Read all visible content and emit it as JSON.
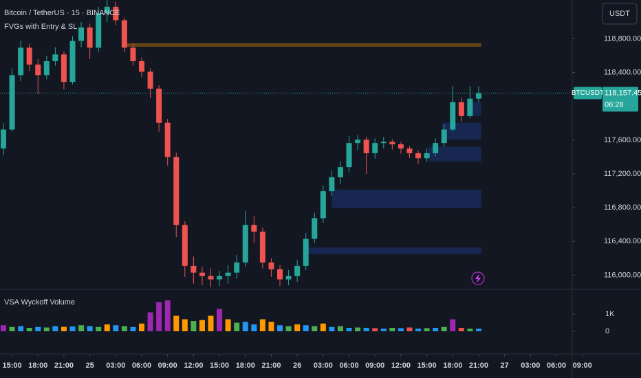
{
  "header": {
    "symbol_title": "Bitcoin / TetherUS · 15 · BINANCE",
    "indicator": "FVGs with Entry & SL",
    "currency_button": "USDT"
  },
  "chart_data": [
    {
      "type": "candlestick",
      "x": [
        -1,
        0,
        1,
        2,
        3,
        4,
        5,
        6,
        7,
        8,
        9,
        10,
        11,
        12,
        13,
        14,
        15,
        16,
        17,
        18,
        19,
        20,
        21,
        22,
        23,
        24,
        25,
        26,
        27,
        28,
        29,
        30,
        31,
        32,
        33,
        34,
        35,
        36,
        37,
        38,
        39,
        40,
        41,
        42,
        43,
        44,
        45,
        46,
        47,
        48,
        49,
        50,
        51,
        52,
        53,
        54
      ],
      "open": [
        117500,
        117725,
        118370,
        118695,
        118495,
        118370,
        118535,
        118615,
        118290,
        118775,
        118935,
        118695,
        119100,
        119180,
        119020,
        118695,
        118535,
        118410,
        118210,
        117805,
        117400,
        116595,
        116110,
        116030,
        115990,
        115950,
        115990,
        116030,
        116150,
        116595,
        116515,
        116150,
        116070,
        115950,
        115990,
        116110,
        116430,
        116675,
        116995,
        117160,
        117280,
        117565,
        117605,
        117445,
        117565,
        117580,
        117550,
        117500,
        117445,
        117385,
        117445,
        117565,
        117725,
        118050,
        117885,
        118090
      ],
      "high": [
        117800,
        118450,
        118780,
        118740,
        118560,
        118600,
        118700,
        118650,
        118830,
        119000,
        118980,
        119180,
        119260,
        119240,
        119050,
        118740,
        118580,
        118450,
        118250,
        117850,
        117450,
        116640,
        116220,
        116100,
        116080,
        116050,
        116120,
        116240,
        116760,
        116700,
        116560,
        116200,
        116120,
        116060,
        116180,
        116500,
        116740,
        117060,
        117240,
        117350,
        117650,
        117660,
        117640,
        117620,
        117640,
        117610,
        117580,
        117530,
        117480,
        117500,
        117620,
        117790,
        118240,
        118100,
        118240,
        118240
      ],
      "low": [
        117420,
        117700,
        118300,
        118420,
        118150,
        118320,
        118480,
        118200,
        118260,
        118700,
        118560,
        118650,
        119000,
        118960,
        118640,
        118480,
        118350,
        118100,
        117700,
        117300,
        116450,
        115980,
        115900,
        115880,
        115860,
        115870,
        115900,
        115960,
        116100,
        116380,
        116080,
        115980,
        115870,
        115880,
        115920,
        116060,
        116380,
        116620,
        116940,
        117080,
        117220,
        117480,
        117200,
        117380,
        117500,
        117490,
        117440,
        117390,
        117320,
        117340,
        117410,
        117520,
        117700,
        117820,
        117860,
        118050
      ],
      "close": [
        117725,
        118370,
        118695,
        118495,
        118370,
        118535,
        118615,
        118290,
        118775,
        118935,
        118695,
        119100,
        119180,
        119020,
        118695,
        118535,
        118410,
        118210,
        117805,
        117400,
        116595,
        116110,
        116030,
        115990,
        115950,
        115990,
        116030,
        116150,
        116595,
        116515,
        116150,
        116070,
        115950,
        115990,
        116110,
        116430,
        116675,
        116995,
        117160,
        117280,
        117565,
        117605,
        117445,
        117565,
        117580,
        117550,
        117500,
        117445,
        117385,
        117445,
        117565,
        117725,
        118050,
        117885,
        118090,
        118157.45
      ],
      "up_color": "#26a69a",
      "down_color": "#ef5350",
      "xlim": [
        -1,
        66.5
      ],
      "ylim": [
        115840,
        119260
      ],
      "xticks": [
        {
          "value": 0,
          "label": "15:00"
        },
        {
          "value": 3,
          "label": "18:00"
        },
        {
          "value": 6,
          "label": "21:00"
        },
        {
          "value": 9,
          "label": "25"
        },
        {
          "value": 12,
          "label": "03:00"
        },
        {
          "value": 15,
          "label": "06:00"
        },
        {
          "value": 18,
          "label": "09:00"
        },
        {
          "value": 21,
          "label": "12:00"
        },
        {
          "value": 24,
          "label": "15:00"
        },
        {
          "value": 27,
          "label": "18:00"
        },
        {
          "value": 30,
          "label": "21:00"
        },
        {
          "value": 33,
          "label": "26"
        },
        {
          "value": 36,
          "label": "03:00"
        },
        {
          "value": 39,
          "label": "06:00"
        },
        {
          "value": 42,
          "label": "09:00"
        },
        {
          "value": 45,
          "label": "12:00"
        },
        {
          "value": 48,
          "label": "15:00"
        },
        {
          "value": 51,
          "label": "18:00"
        },
        {
          "value": 54,
          "label": "21:00"
        },
        {
          "value": 57,
          "label": "27"
        },
        {
          "value": 60,
          "label": "03:00"
        },
        {
          "value": 63,
          "label": "06:00"
        },
        {
          "value": 66,
          "label": "09:00"
        }
      ],
      "yticks": [
        {
          "value": 118800,
          "label": "118,800.00"
        },
        {
          "value": 118400,
          "label": "118,400.00"
        },
        {
          "value": 117600,
          "label": "117,600.00"
        },
        {
          "value": 117200,
          "label": "117,200.00"
        },
        {
          "value": 116800,
          "label": "116,800.00"
        },
        {
          "value": 116400,
          "label": "116,400.00"
        },
        {
          "value": 116000,
          "label": "116,000.00"
        }
      ],
      "last_price": {
        "value": 118157.45,
        "label": "118,157.45"
      },
      "symbol_label": "BTCUSDT",
      "countdown": "06:28",
      "zones": [
        {
          "x0": 37,
          "x1": 54.3,
          "low": 116796,
          "high": 117014
        },
        {
          "x0": 34.2,
          "x1": 54.3,
          "low": 116247,
          "high": 116328
        },
        {
          "x0": 48.2,
          "x1": 54.3,
          "low": 117346,
          "high": 117523
        },
        {
          "x0": 49.8,
          "x1": 54.3,
          "low": 117604,
          "high": 117806
        },
        {
          "x0": 52.6,
          "x1": 54.3,
          "low": 117887,
          "high": 118049
        }
      ],
      "zone_color": "#2962ff",
      "level_line": {
        "value": 118727,
        "x0": 13.3,
        "x1": 54.3,
        "color": "#ff9800"
      }
    },
    {
      "type": "bar",
      "title": "VSA Wyckoff Volume",
      "values": [
        350,
        250,
        300,
        200,
        250,
        220,
        300,
        260,
        280,
        350,
        300,
        250,
        400,
        350,
        300,
        250,
        450,
        1100,
        1700,
        1800,
        900,
        700,
        600,
        650,
        900,
        1300,
        700,
        500,
        550,
        400,
        700,
        550,
        350,
        300,
        400,
        350,
        300,
        450,
        250,
        300,
        200,
        220,
        200,
        180,
        150,
        200,
        180,
        220,
        150,
        180,
        200,
        250,
        700,
        200,
        150,
        150
      ],
      "colors": [
        "#9c27b0",
        "#4caf50",
        "#2196f3",
        "#4caf50",
        "#2196f3",
        "#4caf50",
        "#2196f3",
        "#ff9800",
        "#2196f3",
        "#4caf50",
        "#2196f3",
        "#4caf50",
        "#ff9800",
        "#2196f3",
        "#4caf50",
        "#2196f3",
        "#ff9800",
        "#9c27b0",
        "#9c27b0",
        "#9c27b0",
        "#ff9800",
        "#ff9800",
        "#4caf50",
        "#ff9800",
        "#ff9800",
        "#9c27b0",
        "#ff9800",
        "#4caf50",
        "#2196f3",
        "#2196f3",
        "#ff9800",
        "#ff9800",
        "#2196f3",
        "#4caf50",
        "#ff9800",
        "#2196f3",
        "#4caf50",
        "#ff9800",
        "#2196f3",
        "#4caf50",
        "#2196f3",
        "#4caf50",
        "#2196f3",
        "#ef5350",
        "#2196f3",
        "#4caf50",
        "#2196f3",
        "#ef5350",
        "#2196f3",
        "#4caf50",
        "#2196f3",
        "#4caf50",
        "#9c27b0",
        "#ef5350",
        "#4caf50",
        "#2196f3"
      ],
      "ylim": [
        0,
        2280
      ],
      "yticks": [
        {
          "value": 1000,
          "label": "1K"
        },
        0
      ]
    }
  ]
}
